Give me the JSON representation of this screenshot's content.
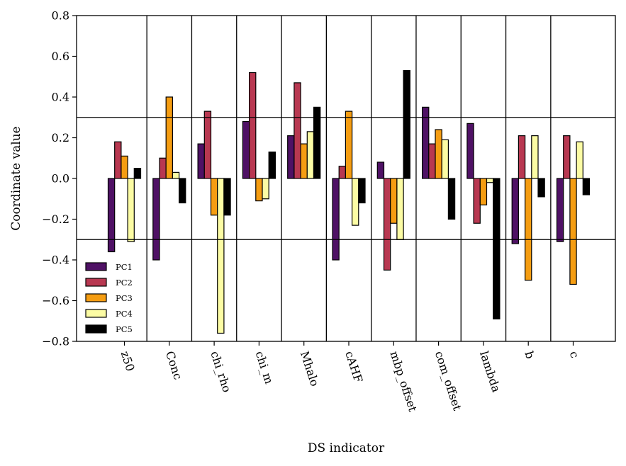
{
  "chart_data": {
    "type": "bar",
    "xlabel": "DS indicator",
    "ylabel": "Coordinate value",
    "ylim": [
      -0.8,
      0.8
    ],
    "yticks": [
      -0.8,
      -0.6,
      -0.4,
      -0.2,
      0.0,
      0.2,
      0.4,
      0.6,
      0.8
    ],
    "ytick_labels": [
      "−0.8",
      "−0.6",
      "−0.4",
      "−0.2",
      "0.0",
      "0.2",
      "0.4",
      "0.6",
      "0.8"
    ],
    "reference_lines": [
      0.3,
      -0.3
    ],
    "legend_position": "lower-left",
    "grid": false,
    "categories": [
      "z50",
      "Conc",
      "chi_rho",
      "chi_m",
      "Mhalo",
      "cAHF",
      "mbp_offset",
      "com_offset",
      "lambda",
      "b",
      "c"
    ],
    "series": [
      {
        "name": "PC1",
        "color": "#4f1165",
        "values": [
          -0.36,
          -0.4,
          0.17,
          0.28,
          0.21,
          -0.4,
          0.08,
          0.35,
          0.27,
          -0.32,
          -0.31
        ]
      },
      {
        "name": "PC2",
        "color": "#b83851",
        "values": [
          0.18,
          0.1,
          0.33,
          0.52,
          0.47,
          0.06,
          -0.45,
          0.17,
          -0.22,
          0.21,
          0.21
        ]
      },
      {
        "name": "PC3",
        "color": "#f59d12",
        "values": [
          0.11,
          0.4,
          -0.18,
          -0.11,
          0.17,
          0.33,
          -0.22,
          0.24,
          -0.13,
          -0.5,
          -0.52
        ]
      },
      {
        "name": "PC4",
        "color": "#fcfca4",
        "values": [
          -0.31,
          0.03,
          -0.76,
          -0.1,
          0.23,
          -0.23,
          -0.3,
          0.19,
          -0.02,
          0.21,
          0.18
        ]
      },
      {
        "name": "PC5",
        "color": "#000000",
        "values": [
          0.05,
          -0.12,
          -0.18,
          0.13,
          0.35,
          -0.12,
          0.53,
          -0.2,
          -0.69,
          -0.09,
          -0.08
        ]
      }
    ]
  }
}
